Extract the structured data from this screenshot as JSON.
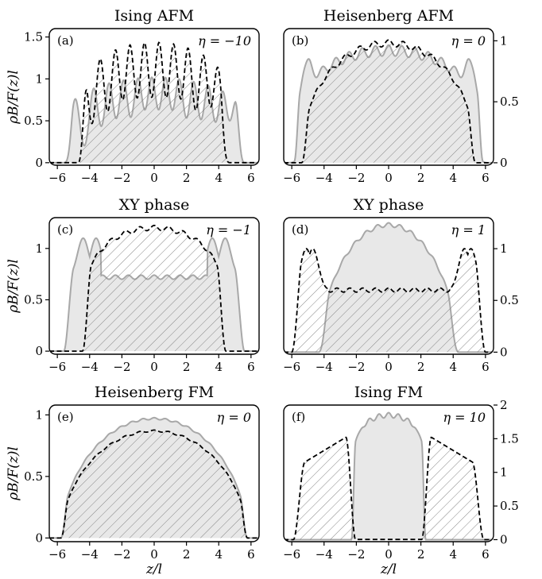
{
  "chart_data": [
    {
      "type": "area",
      "panel_label": "(a)",
      "title": "Ising AFM",
      "annotation": "η = −10",
      "ylabel": "ρB/F(z)l",
      "xlabel": "",
      "xlim": [
        -6.5,
        6.5
      ],
      "ylim": [
        -0.03,
        1.6
      ],
      "yticks": [
        0,
        0.5,
        1,
        1.5
      ],
      "ytick_labels": [
        "0",
        "0.5",
        "1",
        "1.5"
      ],
      "yaxis_side": "left",
      "xticks": [
        -6,
        -4,
        -2,
        0,
        2,
        4,
        6
      ],
      "xtick_labels": [
        "−6",
        "−4",
        "−2",
        "0",
        "2",
        "4",
        "6"
      ],
      "series": [
        {
          "style": "solid-gray-filled",
          "model": {
            "kind": "osc",
            "R": 5.6,
            "amp": 1.0,
            "peaks": [
              -4.9,
              -3.75,
              -2.8,
              -1.9,
              -1.0,
              -0.15,
              0.7,
              1.55,
              2.45,
              3.35,
              4.25,
              5.1
            ],
            "w": 0.28
          }
        },
        {
          "style": "dashed-black-hatched",
          "model": {
            "kind": "osc",
            "R": 4.7,
            "amp": 1.42,
            "peaks": [
              -4.35,
              -3.35,
              -2.4,
              -1.5,
              -0.6,
              0.3,
              1.2,
              2.1,
              3.05,
              3.95
            ],
            "w": 0.28
          }
        }
      ]
    },
    {
      "type": "area",
      "panel_label": "(b)",
      "title": "Heisenberg AFM",
      "annotation": "η = 0",
      "ylabel": "",
      "xlabel": "",
      "xlim": [
        -6.5,
        6.5
      ],
      "ylim": [
        -0.02,
        1.1
      ],
      "yticks": [
        0,
        0.5,
        1
      ],
      "ytick_labels": [
        "0",
        "0.5",
        "1"
      ],
      "yaxis_side": "right",
      "xticks": [
        -6,
        -4,
        -2,
        0,
        2,
        4,
        6
      ],
      "xtick_labels": [
        "−6",
        "−4",
        "−2",
        "0",
        "2",
        "4",
        "6"
      ],
      "series": [
        {
          "style": "solid-gray-filled",
          "model": {
            "kind": "env",
            "R": 5.85,
            "h": 0.92,
            "p": 0.3,
            "ramp": 0.35,
            "wig": 0.12,
            "wl": 0.82,
            "bump": 0.22,
            "bumpx": 5.1
          }
        },
        {
          "style": "dashed-black-hatched",
          "model": {
            "kind": "env",
            "R": 5.4,
            "h": 0.98,
            "p": 0.45,
            "ramp": 0.5,
            "wig": 0.07,
            "wl": 0.9,
            "bump": 0,
            "bumpx": 0
          }
        }
      ]
    },
    {
      "type": "area",
      "panel_label": "(c)",
      "title": "XY phase",
      "annotation": "η = −1",
      "ylabel": "ρB/F(z)l",
      "xlabel": "",
      "xlim": [
        -6.5,
        6.5
      ],
      "ylim": [
        -0.03,
        1.3
      ],
      "yticks": [
        0,
        0.5,
        1
      ],
      "ytick_labels": [
        "0",
        "0.5",
        "1"
      ],
      "yaxis_side": "left",
      "xticks": [
        -6,
        -4,
        -2,
        0,
        2,
        4,
        6
      ],
      "xtick_labels": [
        "−6",
        "−4",
        "−2",
        "0",
        "2",
        "4",
        "6"
      ],
      "series": [
        {
          "style": "solid-gray-filled",
          "model": {
            "kind": "shell",
            "edge": 5.6,
            "hedge": 0.35,
            "inner": 0.72,
            "ipeak": [
              3.6,
              4.4
            ],
            "hpk": 1.1,
            "core": 3.3
          }
        },
        {
          "style": "dashed-black-hatched",
          "model": {
            "kind": "env",
            "R": 4.45,
            "h": 1.2,
            "p": 0.25,
            "ramp": 0.55,
            "wig": 0.05,
            "wl": 0.9,
            "bump": 0,
            "bumpx": 0
          }
        }
      ]
    },
    {
      "type": "area",
      "panel_label": "(d)",
      "title": "XY phase",
      "annotation": "η = 1",
      "ylabel": "",
      "xlabel": "",
      "xlim": [
        -6.5,
        6.5
      ],
      "ylim": [
        -0.02,
        1.3
      ],
      "yticks": [
        0,
        0.5,
        1
      ],
      "ytick_labels": [
        "0",
        "0.5",
        "1"
      ],
      "yaxis_side": "right",
      "xticks": [
        -6,
        -4,
        -2,
        0,
        2,
        4,
        6
      ],
      "xtick_labels": [
        "−6",
        "−4",
        "−2",
        "0",
        "2",
        "4",
        "6"
      ],
      "series": [
        {
          "style": "solid-gray-filled",
          "model": {
            "kind": "env",
            "R": 4.35,
            "h": 1.23,
            "p": 0.6,
            "ramp": 0.7,
            "wig": 0.04,
            "wl": 0.7,
            "bump": 0,
            "bumpx": 0
          }
        },
        {
          "style": "dashed-black-hatched",
          "model": {
            "kind": "shell",
            "edge": 6.0,
            "hedge": 0.45,
            "inner": 0.6,
            "ipeak": [
              4.7,
              5.1
            ],
            "hpk": 1.0,
            "core": 3.8
          }
        }
      ]
    },
    {
      "type": "area",
      "panel_label": "(e)",
      "title": "Heisenberg FM",
      "annotation": "η = 0",
      "ylabel": "ρB/F(z)l",
      "xlabel": "z/l",
      "xlim": [
        -6.5,
        6.5
      ],
      "ylim": [
        -0.03,
        1.08
      ],
      "yticks": [
        0,
        0.5,
        1
      ],
      "ytick_labels": [
        "0",
        "0.5",
        "1"
      ],
      "yaxis_side": "left",
      "xticks": [
        -6,
        -4,
        -2,
        0,
        2,
        4,
        6
      ],
      "xtick_labels": [
        "−6",
        "−4",
        "−2",
        "0",
        "2",
        "4",
        "6"
      ],
      "series": [
        {
          "style": "solid-gray-filled",
          "model": {
            "kind": "env",
            "R": 5.8,
            "h": 0.97,
            "p": 0.55,
            "ramp": 0.45,
            "wig": 0.02,
            "wl": 0.7,
            "bump": 0,
            "bumpx": 0
          }
        },
        {
          "style": "dashed-black-hatched",
          "model": {
            "kind": "env",
            "R": 5.8,
            "h": 0.87,
            "p": 0.55,
            "ramp": 0.45,
            "wig": 0.02,
            "wl": 0.9,
            "bump": 0,
            "bumpx": 0
          }
        }
      ]
    },
    {
      "type": "area",
      "panel_label": "(f)",
      "title": "Ising FM",
      "annotation": "η = 10",
      "ylabel": "",
      "xlabel": "z/l",
      "xlim": [
        -6.5,
        6.5
      ],
      "ylim": [
        -0.03,
        2.0
      ],
      "yticks": [
        0,
        0.5,
        1,
        1.5,
        2
      ],
      "ytick_labels": [
        "0",
        "0.5",
        "1",
        "1.5",
        "2"
      ],
      "yaxis_side": "right",
      "xticks": [
        -6,
        -4,
        -2,
        0,
        2,
        4,
        6
      ],
      "xtick_labels": [
        "−6",
        "−4",
        "−2",
        "0",
        "2",
        "4",
        "6"
      ],
      "series": [
        {
          "style": "solid-gray-filled",
          "model": {
            "kind": "env",
            "R": 2.3,
            "h": 1.85,
            "p": 0.15,
            "ramp": 0.25,
            "wig": 0.05,
            "wl": 0.6,
            "bump": 0,
            "bumpx": 0
          }
        },
        {
          "style": "dashed-black-hatched",
          "model": {
            "kind": "shell2",
            "edge": 5.9,
            "core": 2.05,
            "hpk": 1.55,
            "htail": 1.05
          }
        }
      ]
    }
  ]
}
